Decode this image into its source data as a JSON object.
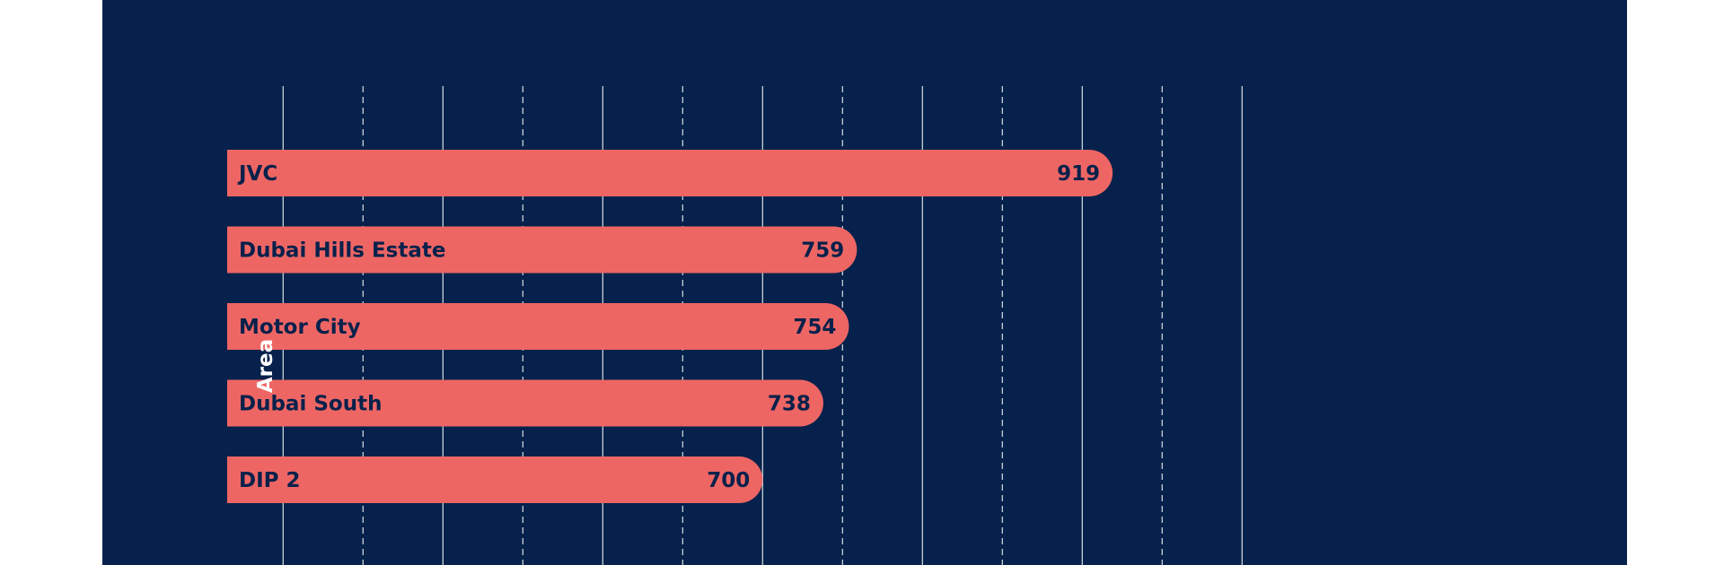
{
  "chart_data": {
    "type": "bar",
    "orientation": "horizontal",
    "categories": [
      "JVC",
      "Dubai Hills Estate",
      "Motor City",
      "Dubai South",
      "DIP 2"
    ],
    "values": [
      919,
      759,
      754,
      738,
      700
    ],
    "ylabel": "Area",
    "xlim": [
      365,
      1000
    ],
    "xticks_solid": [
      400,
      500,
      600,
      700,
      800,
      900,
      1000
    ],
    "xticks_dashed": [
      450,
      550,
      650,
      750,
      850,
      950
    ],
    "grid": true,
    "data_labels": true
  },
  "colors": {
    "background": "#06214b",
    "bar": "#ee6664",
    "text_dark": "#06214b",
    "text_light": "#ffffff",
    "grid": "#ffffff"
  }
}
